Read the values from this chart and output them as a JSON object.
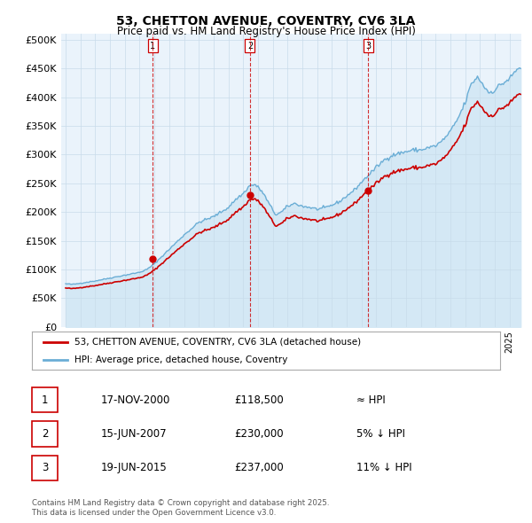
{
  "title_line1": "53, CHETTON AVENUE, COVENTRY, CV6 3LA",
  "title_line2": "Price paid vs. HM Land Registry's House Price Index (HPI)",
  "yticks": [
    0,
    50000,
    100000,
    150000,
    200000,
    250000,
    300000,
    350000,
    400000,
    450000,
    500000
  ],
  "ytick_labels": [
    "£0",
    "£50K",
    "£100K",
    "£150K",
    "£200K",
    "£250K",
    "£300K",
    "£350K",
    "£400K",
    "£450K",
    "£500K"
  ],
  "ylim": [
    0,
    510000
  ],
  "xlim_start": 1994.7,
  "xlim_end": 2025.8,
  "hpi_color": "#6baed6",
  "hpi_fill_color": "#d4e8f5",
  "property_color": "#cc0000",
  "sale1_year": 2000.88,
  "sale1_price": 118500,
  "sale2_year": 2007.46,
  "sale2_price": 230000,
  "sale3_year": 2015.46,
  "sale3_price": 237000,
  "legend_property": "53, CHETTON AVENUE, COVENTRY, CV6 3LA (detached house)",
  "legend_hpi": "HPI: Average price, detached house, Coventry",
  "table_row1": [
    "1",
    "17-NOV-2000",
    "£118,500",
    "≈ HPI"
  ],
  "table_row2": [
    "2",
    "15-JUN-2007",
    "£230,000",
    "5% ↓ HPI"
  ],
  "table_row3": [
    "3",
    "19-JUN-2015",
    "£237,000",
    "11% ↓ HPI"
  ],
  "footnote": "Contains HM Land Registry data © Crown copyright and database right 2025.\nThis data is licensed under the Open Government Licence v3.0.",
  "background_color": "#ffffff",
  "chart_bg_color": "#eaf3fb",
  "grid_color": "#c8dcea"
}
